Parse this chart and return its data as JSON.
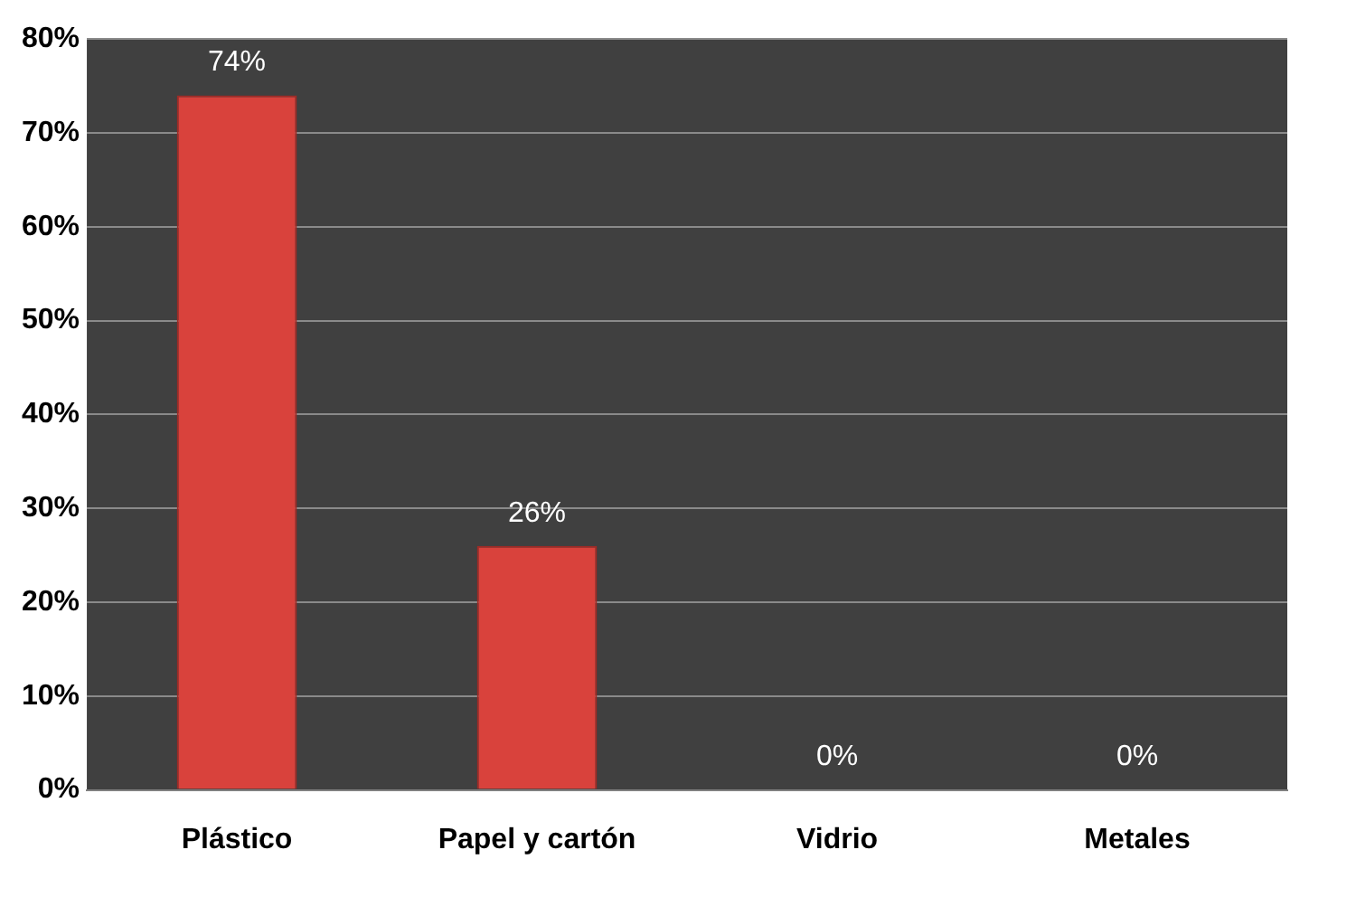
{
  "chart_data": {
    "type": "bar",
    "categories": [
      "Plástico",
      "Papel y cartón",
      "Vidrio",
      "Metales"
    ],
    "values": [
      74,
      26,
      0,
      0
    ],
    "color": "#d9423c",
    "value_labels": [
      "74%",
      "26%",
      "0%",
      "0%"
    ],
    "ylim": [
      0,
      80
    ],
    "yticks": [
      {
        "value": 0,
        "label": "0%"
      },
      {
        "value": 10,
        "label": "10%"
      },
      {
        "value": 20,
        "label": "20%"
      },
      {
        "value": 30,
        "label": "30%"
      },
      {
        "value": 40,
        "label": "40%"
      },
      {
        "value": 50,
        "label": "50%"
      },
      {
        "value": 60,
        "label": "60%"
      },
      {
        "value": 70,
        "label": "70%"
      },
      {
        "value": 80,
        "label": "80%"
      }
    ],
    "grid": "y"
  }
}
